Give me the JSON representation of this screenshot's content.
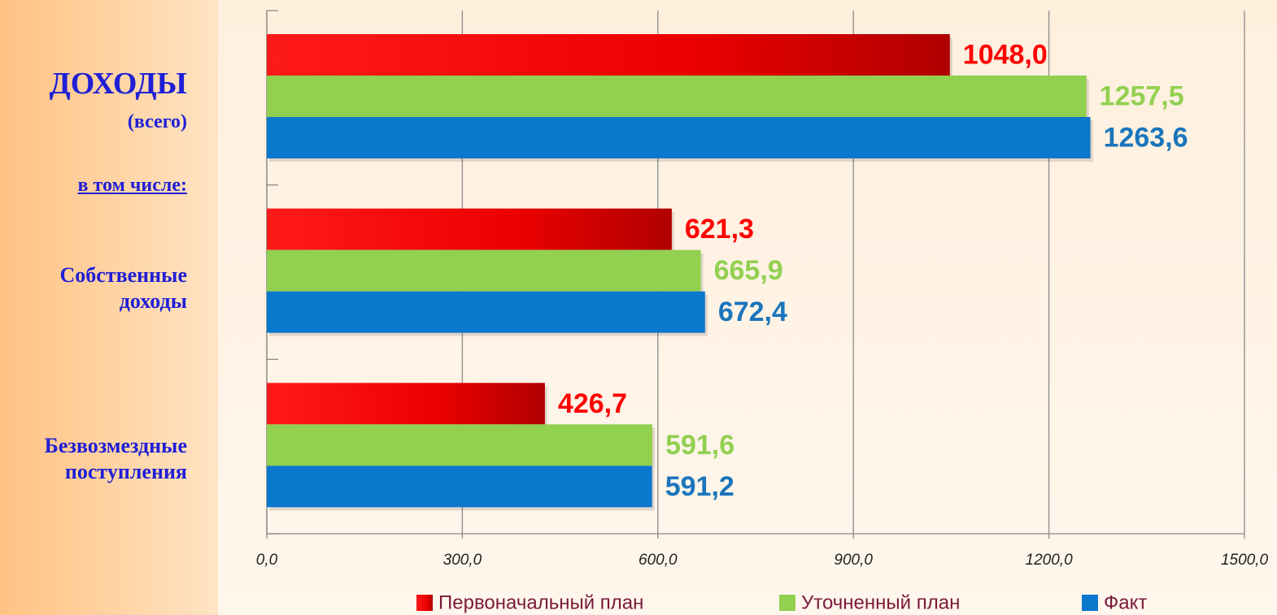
{
  "chart_data": {
    "type": "barh",
    "categories": [
      "ДОХОДЫ",
      "Собственные доходы",
      "Безвозмездные поступления"
    ],
    "annotations": [
      "(всего)",
      "в том числе:"
    ],
    "series": [
      {
        "name": "Первоначальный план",
        "color": "#ff0000",
        "values": [
          1048.0,
          621.3,
          426.7
        ],
        "value_labels": [
          "1048,0",
          "621,3",
          "426,7"
        ]
      },
      {
        "name": "Уточненный план",
        "color": "#92d050",
        "values": [
          1257.5,
          665.9,
          591.6
        ],
        "value_labels": [
          "1257,5",
          "665,9",
          "591,6"
        ]
      },
      {
        "name": "Факт",
        "color": "#0a78cc",
        "values": [
          1263.6,
          672.4,
          591.2
        ],
        "value_labels": [
          "1263,6",
          "672,4",
          "591,2"
        ]
      }
    ],
    "xlim": [
      0,
      1500
    ],
    "xticks": [
      {
        "value": 0,
        "label": "0,0"
      },
      {
        "value": 300,
        "label": "300,0"
      },
      {
        "value": 600,
        "label": "600,0"
      },
      {
        "value": 900,
        "label": "900,0"
      },
      {
        "value": 1200,
        "label": "1200,0"
      },
      {
        "value": 1500,
        "label": "1500,0"
      }
    ],
    "grid": true,
    "legend": "bottom"
  }
}
